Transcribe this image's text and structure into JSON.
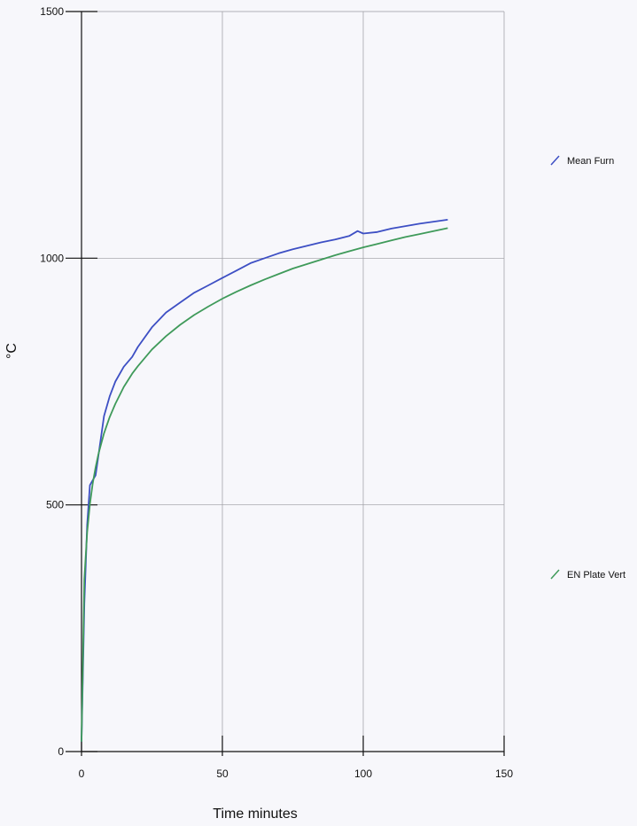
{
  "chart_data": {
    "type": "line",
    "title": "",
    "xlabel": "Time minutes",
    "ylabel": "°C",
    "xlim": [
      0,
      150
    ],
    "ylim": [
      0,
      1500
    ],
    "x_ticks": [
      "0",
      "50",
      "100",
      "150"
    ],
    "y_ticks": [
      "0",
      "500",
      "1000",
      "1500"
    ],
    "grid": true,
    "series": [
      {
        "name": "Mean Furn",
        "color": "#3d4fc4",
        "x": [
          0,
          1,
          2,
          3,
          4,
          5,
          6,
          8,
          10,
          12,
          15,
          18,
          20,
          25,
          30,
          35,
          40,
          45,
          50,
          55,
          60,
          65,
          70,
          75,
          80,
          85,
          90,
          95,
          98,
          100,
          105,
          110,
          115,
          120,
          125,
          130
        ],
        "y": [
          20,
          300,
          460,
          540,
          550,
          560,
          600,
          680,
          720,
          750,
          780,
          800,
          820,
          860,
          890,
          910,
          930,
          945,
          960,
          975,
          990,
          1000,
          1010,
          1018,
          1025,
          1032,
          1038,
          1045,
          1055,
          1050,
          1053,
          1060,
          1065,
          1070,
          1074,
          1078
        ]
      },
      {
        "name": "EN Plate Vert",
        "color": "#3f9a5a",
        "x": [
          0,
          1,
          2,
          3,
          4,
          5,
          6,
          8,
          10,
          12,
          15,
          18,
          20,
          25,
          30,
          35,
          40,
          45,
          50,
          55,
          60,
          65,
          70,
          75,
          80,
          85,
          90,
          95,
          100,
          105,
          110,
          115,
          120,
          125,
          130
        ],
        "y": [
          20,
          349,
          445,
          502,
          544,
          576,
          603,
          645,
          678,
          705,
          739,
          766,
          781,
          815,
          842,
          865,
          885,
          902,
          918,
          932,
          945,
          957,
          968,
          979,
          988,
          997,
          1006,
          1014,
          1022,
          1029,
          1036,
          1043,
          1049,
          1055,
          1061
        ]
      }
    ]
  }
}
